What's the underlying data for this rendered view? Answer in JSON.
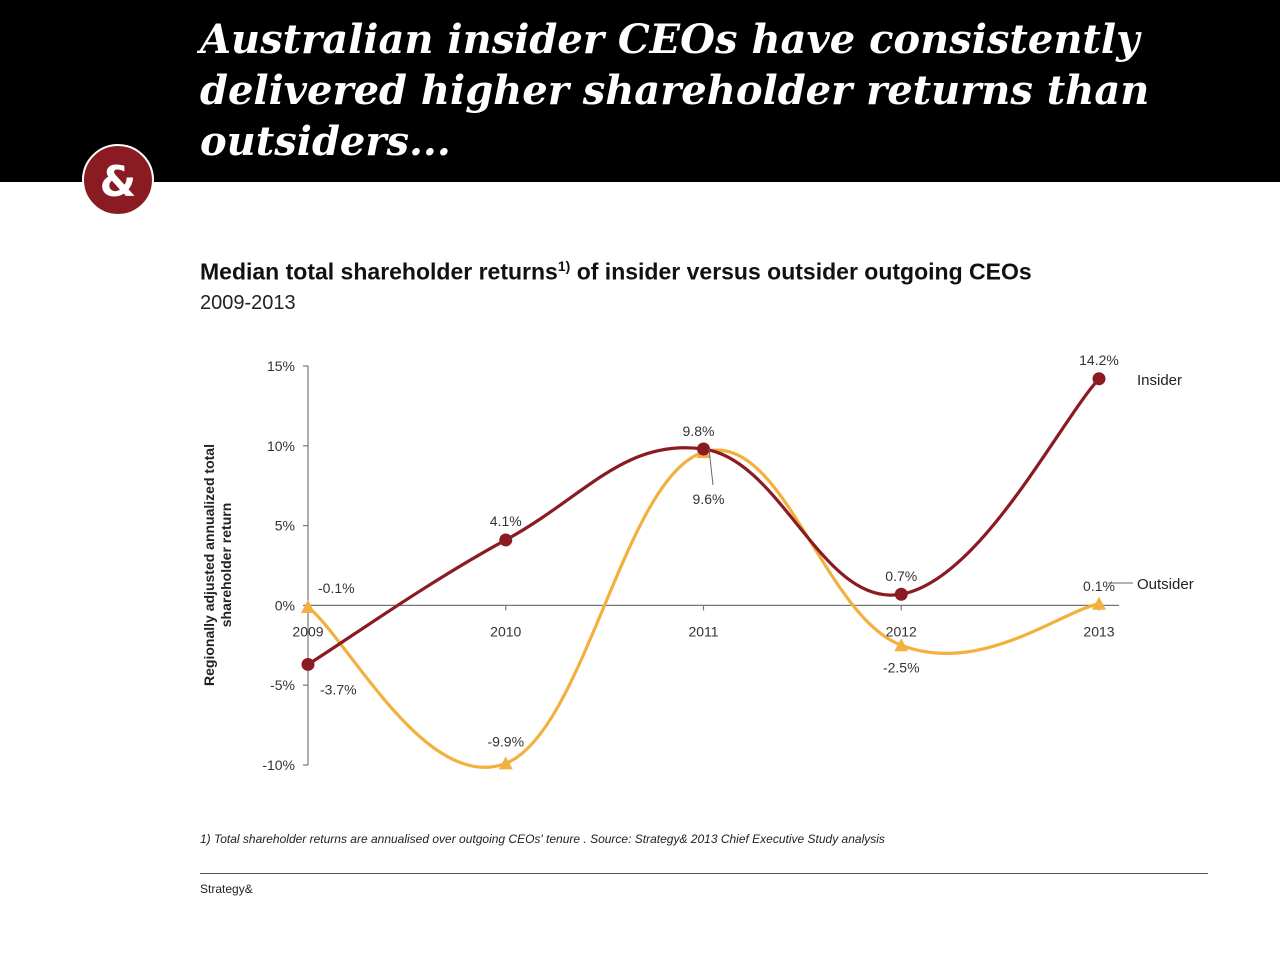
{
  "header": {
    "headline": "Australian insider CEOs have consistently delivered higher shareholder returns than outsiders...",
    "logo_text": "&",
    "accent_color": "#8b1b22"
  },
  "chart_data": {
    "type": "line",
    "title": "Median total shareholder returns",
    "title_superscript": "1)",
    "title_suffix": "of insider versus outsider outgoing CEOs",
    "subtitle": "2009-2013",
    "ylabel_lines": [
      "Regionally adjusted annualized total",
      "shareholder return"
    ],
    "categories": [
      "2009",
      "2010",
      "2011",
      "2012",
      "2013"
    ],
    "ylim": [
      -10,
      15
    ],
    "yticks": [
      15,
      10,
      5,
      0,
      -5,
      -10
    ],
    "ytick_labels": [
      "15%",
      "10%",
      "5%",
      "0%",
      "-5%",
      "-10%"
    ],
    "grid": false,
    "series": [
      {
        "name": "Insider",
        "color": "#8b1b22",
        "marker": "circle",
        "values": [
          -3.7,
          4.1,
          9.8,
          0.7,
          14.2
        ],
        "labels": [
          "-3.7%",
          "4.1%",
          "9.8%",
          "0.7%",
          "14.2%"
        ]
      },
      {
        "name": "Outsider",
        "color": "#f2b13e",
        "marker": "triangle",
        "values": [
          -0.1,
          -9.9,
          9.6,
          -2.5,
          0.1
        ],
        "labels": [
          "-0.1%",
          "-9.9%",
          "9.6%",
          "-2.5%",
          "0.1%"
        ]
      }
    ]
  },
  "footer": {
    "footnote": "1) Total shareholder returns are annualised over outgoing CEOs' tenure . Source: Strategy& 2013 Chief Executive Study analysis",
    "brand": "Strategy&"
  }
}
